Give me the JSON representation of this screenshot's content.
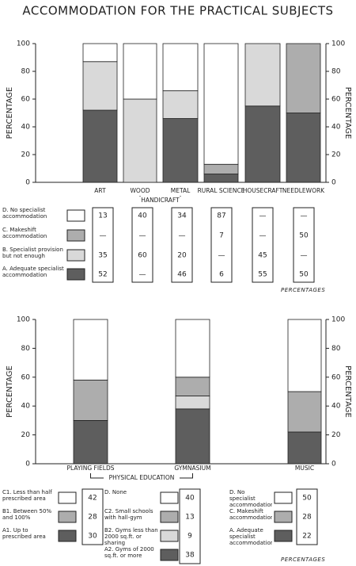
{
  "title": "ACCOMMODATION FOR THE PRACTICAL SUBJECTS",
  "chart_data": [
    {
      "type": "bar",
      "stacked": true,
      "legend": "shared",
      "categories": [
        "ART",
        "WOOD",
        "METAL",
        "RURAL SCIENCE",
        "HOUSECRAFT",
        "NEEDLEWORK"
      ],
      "groups": [
        {
          "label": "HANDICRAFT",
          "span": [
            1,
            2
          ]
        }
      ],
      "series": [
        {
          "name": "A. Adequate specialist accommodation",
          "color": "#5e5e5e",
          "values": [
            52,
            null,
            46,
            6,
            55,
            50
          ],
          "value_labels": [
            "52",
            "—",
            "46",
            "6",
            "55",
            "50"
          ]
        },
        {
          "name": "B. Specialist provision but not enough",
          "color": "#d9d9d9",
          "values": [
            35,
            60,
            20,
            null,
            45,
            null
          ],
          "value_labels": [
            "35",
            "60",
            "20",
            "—",
            "45",
            "—"
          ]
        },
        {
          "name": "C. Makeshift accommodation",
          "color": "#adadad",
          "values": [
            null,
            null,
            null,
            7,
            null,
            50
          ],
          "value_labels": [
            "—",
            "—",
            "—",
            "7",
            "—",
            "50"
          ]
        },
        {
          "name": "D. No specialist accommodation",
          "color": "#ffffff",
          "values": [
            13,
            40,
            34,
            87,
            null,
            null
          ],
          "value_labels": [
            "13",
            "40",
            "34",
            "87",
            "—",
            "—"
          ]
        }
      ],
      "ylabel": "PERCENTAGE",
      "ylim": [
        0,
        100
      ],
      "yticks": [
        0,
        20,
        40,
        60,
        80,
        100
      ],
      "y2label": "PERCENTAGE",
      "y2lim": [
        0,
        100
      ],
      "y2ticks": [
        0,
        20,
        40,
        60,
        80,
        100
      ],
      "note": "PERCENTAGES"
    },
    {
      "type": "bar",
      "stacked": true,
      "legend": "per-category",
      "categories": [
        "PLAYING FIELDS",
        "GYMNASIUM",
        "MUSIC"
      ],
      "groups": [
        {
          "label": "PHYSICAL EDUCATION",
          "span": [
            0,
            1
          ]
        }
      ],
      "series": [
        {
          "name": "A1. Up to prescribed area",
          "color": "#5e5e5e",
          "values": [
            30,
            null,
            null
          ]
        },
        {
          "name": "B1. Between 50% and 100%",
          "color": "#adadad",
          "values": [
            28,
            null,
            null
          ]
        },
        {
          "name": "C1. Less than half prescribed area",
          "color": "#ffffff",
          "values": [
            42,
            null,
            null
          ]
        },
        {
          "name": "A2. Gyms of 2000 sq.ft. or more",
          "color": "#5e5e5e",
          "values": [
            null,
            38,
            null
          ]
        },
        {
          "name": "B2. Gyms less than 2000 sq.ft. or sharing",
          "color": "#d9d9d9",
          "values": [
            null,
            9,
            null
          ]
        },
        {
          "name": "C2. Small schools with hall-gym",
          "color": "#adadad",
          "values": [
            null,
            13,
            null
          ]
        },
        {
          "name": "D. None",
          "color": "#ffffff",
          "values": [
            null,
            40,
            null
          ]
        },
        {
          "name": "A. Adequate specialist accommodation",
          "color": "#5e5e5e",
          "values": [
            null,
            null,
            22
          ]
        },
        {
          "name": "C. Makeshift accommodation",
          "color": "#adadad",
          "values": [
            null,
            null,
            28
          ]
        },
        {
          "name": "D. No specialist accommodation",
          "color": "#ffffff",
          "values": [
            null,
            null,
            50
          ]
        }
      ],
      "ylabel": "PERCENTAGE",
      "ylim": [
        0,
        100
      ],
      "yticks": [
        0,
        20,
        40,
        60,
        80,
        100
      ],
      "y2label": "PERCENTAGE",
      "y2lim": [
        0,
        100
      ],
      "y2ticks": [
        0,
        20,
        40,
        60,
        80,
        100
      ],
      "note": "PERCENTAGES"
    }
  ]
}
